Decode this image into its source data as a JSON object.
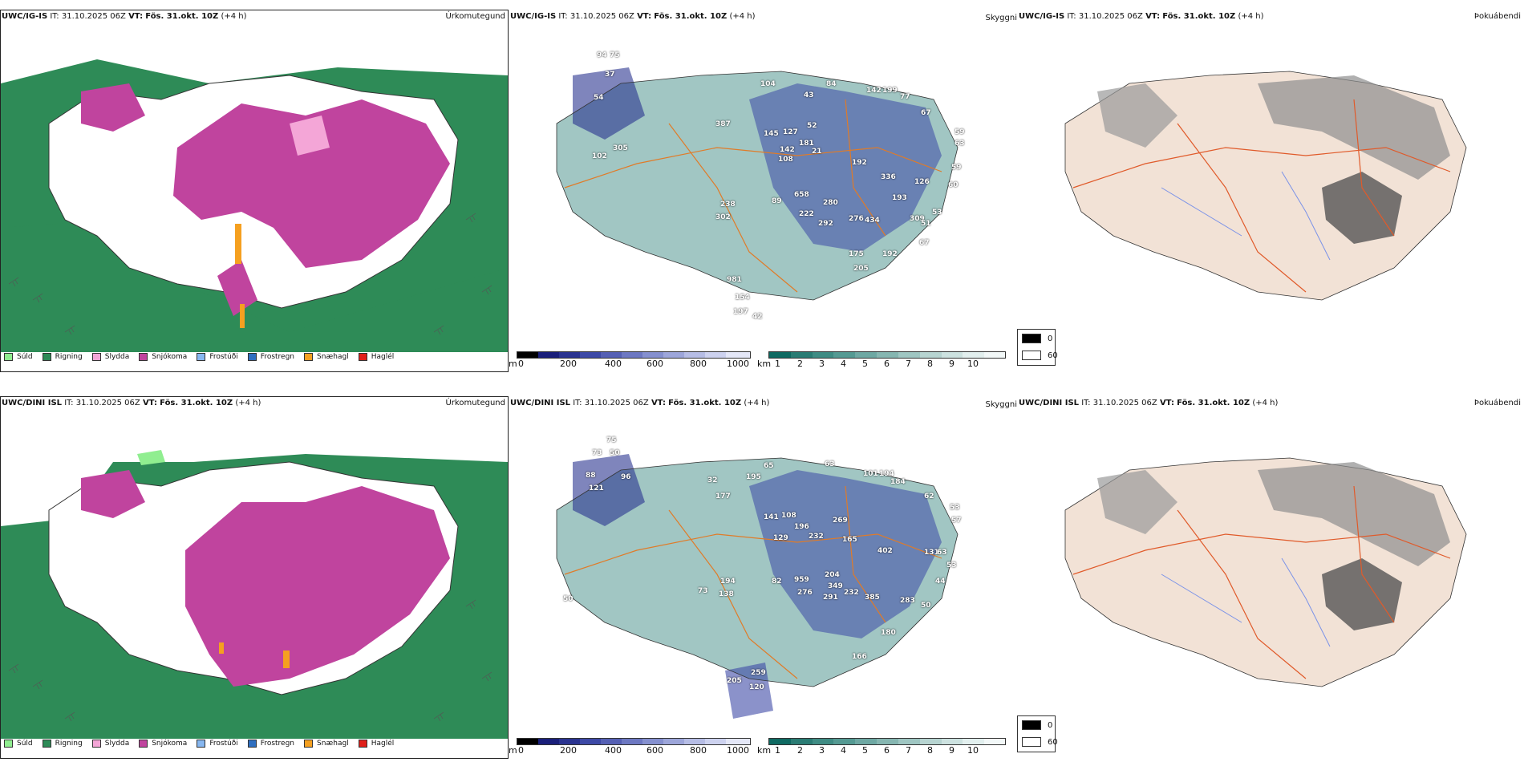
{
  "rows": [
    {
      "model": "UWC/IG-IS",
      "it_label": "IT:",
      "it_value": "31.10.2025 06Z",
      "vt_label": "VT:",
      "vt_value": "Fös. 31.okt. 10Z",
      "lead": "(+4 h)",
      "precip_title": "Úrkomutegund",
      "cloud_title": "Skyggni",
      "fog_title": "Þokuábendi",
      "labels": [
        "94",
        "75",
        "37",
        "54",
        "102",
        "305",
        "387",
        "104",
        "43",
        "84",
        "142",
        "199",
        "77",
        "67",
        "59",
        "63",
        "59",
        "60",
        "145",
        "127",
        "52",
        "142",
        "108",
        "181",
        "21",
        "192",
        "336",
        "193",
        "126",
        "309",
        "51",
        "53",
        "67",
        "192",
        "89",
        "238",
        "302",
        "658",
        "222",
        "280",
        "292",
        "276",
        "434",
        "175",
        "205",
        "981",
        "154",
        "42",
        "197"
      ]
    },
    {
      "model": "UWC/DINI ISL",
      "it_label": "IT:",
      "it_value": "31.10.2025 06Z",
      "vt_label": "VT:",
      "vt_value": "Fös. 31.okt. 10Z",
      "lead": "(+4 h)",
      "precip_title": "Úrkomutegund",
      "cloud_title": "Skyggni",
      "fog_title": "Þokuábendi",
      "labels": [
        "75",
        "73",
        "50",
        "88",
        "96",
        "121",
        "32",
        "177",
        "195",
        "65",
        "63",
        "101",
        "194",
        "184",
        "62",
        "53",
        "57",
        "141",
        "108",
        "129",
        "196",
        "232",
        "269",
        "165",
        "402",
        "131",
        "63",
        "53",
        "44",
        "82",
        "959",
        "204",
        "276",
        "349",
        "291",
        "232",
        "385",
        "283",
        "50",
        "194",
        "138",
        "73",
        "166",
        "180",
        "259",
        "205",
        "120",
        "50"
      ]
    }
  ],
  "precip_legend": [
    {
      "label": "Súld",
      "color": "#90ee90"
    },
    {
      "label": "Rigning",
      "color": "#2e8b57"
    },
    {
      "label": "Slydda",
      "color": "#f4a6d7"
    },
    {
      "label": "Snjókoma",
      "color": "#c0449e"
    },
    {
      "label": "Frostúði",
      "color": "#87b7f0"
    },
    {
      "label": "Frostregn",
      "color": "#2f6fc0"
    },
    {
      "label": "Snæhagl",
      "color": "#f5a020"
    },
    {
      "label": "Haglél",
      "color": "#e0201a"
    }
  ],
  "ceiling_bar": {
    "unit": "m",
    "ticks": [
      "0",
      "200",
      "400",
      "600",
      "800",
      "1000"
    ],
    "colors": [
      "#000000",
      "#1a1f7a",
      "#2a3390",
      "#3d49a6",
      "#5560b4",
      "#6d78c2",
      "#8590cf",
      "#9da6da",
      "#b6bde5",
      "#cdd2ef",
      "#e4e7f7"
    ]
  },
  "visibility_bar": {
    "unit": "km",
    "ticks": [
      "1",
      "2",
      "3",
      "4",
      "5",
      "6",
      "7",
      "8",
      "9",
      "10"
    ],
    "colors": [
      "#0f6a62",
      "#2a7c74",
      "#3f8c84",
      "#559a93",
      "#6ea8a3",
      "#86b6b1",
      "#9fc6c2",
      "#b7d4d1",
      "#cde2e0",
      "#e2efee",
      "#f2f8f8"
    ]
  },
  "fog_legend": [
    {
      "label": "0",
      "color": "#000000"
    },
    {
      "label": "60",
      "color": "#ffffff"
    }
  ]
}
